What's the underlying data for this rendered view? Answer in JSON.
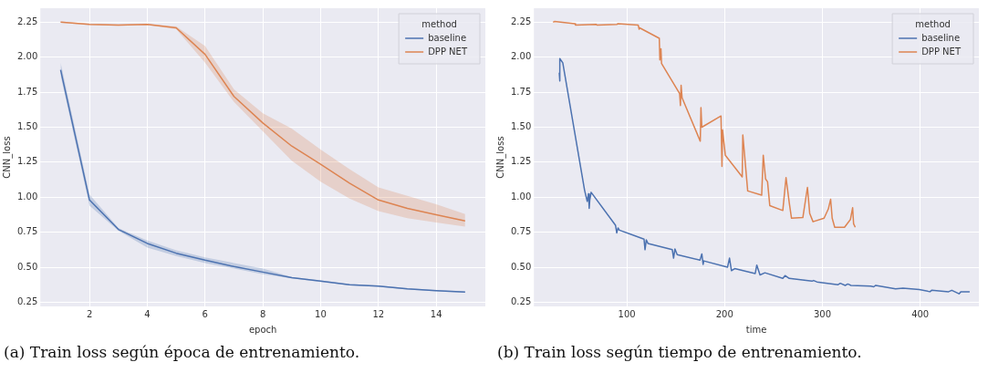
{
  "chart_data": [
    {
      "type": "line",
      "xlabel": "epoch",
      "ylabel": "CNN_loss",
      "legend_title": "method",
      "legend": "top right",
      "grid": true,
      "xlim": [
        0.3,
        15.7
      ],
      "xticks": [
        2,
        4,
        6,
        8,
        10,
        12,
        14
      ],
      "ylim": [
        0.22,
        2.35
      ],
      "yticks": [
        0.25,
        {
          "value": 0.5,
          "label": "0.50"
        },
        0.75,
        {
          "value": 1,
          "label": "1.00"
        },
        1.25,
        {
          "value": 1.5,
          "label": "1.50"
        },
        1.75,
        {
          "value": 2,
          "label": "2.00"
        },
        2.25
      ],
      "annotations": [
        "(a) Train loss según época de entrenamiento."
      ],
      "x": [
        1,
        2,
        3,
        4,
        5,
        6,
        7,
        8,
        9,
        10,
        11,
        12,
        13,
        14,
        15
      ],
      "series": [
        {
          "name": "baseline",
          "color": "#4c72b0",
          "values": [
            1.91,
            0.98,
            0.77,
            0.67,
            0.6,
            0.55,
            0.505,
            0.465,
            0.425,
            0.4,
            0.375,
            0.365,
            0.345,
            0.333,
            0.322
          ],
          "lower": [
            1.87,
            0.94,
            0.76,
            0.64,
            0.58,
            0.53,
            0.49,
            0.45,
            0.42,
            0.395,
            0.37,
            0.36,
            0.34,
            0.328,
            0.317
          ],
          "upper": [
            1.96,
            1.02,
            0.78,
            0.69,
            0.62,
            0.57,
            0.53,
            0.49,
            0.43,
            0.405,
            0.38,
            0.37,
            0.35,
            0.338,
            0.327
          ]
        },
        {
          "name": "DPP NET",
          "color": "#dd8452",
          "values": [
            2.25,
            2.235,
            2.23,
            2.235,
            2.21,
            2.02,
            1.72,
            1.53,
            1.365,
            1.235,
            1.1,
            0.98,
            0.92,
            0.875,
            0.83
          ],
          "lower": [
            2.245,
            2.23,
            2.225,
            2.23,
            2.2,
            1.96,
            1.68,
            1.47,
            1.26,
            1.11,
            0.99,
            0.9,
            0.85,
            0.82,
            0.79
          ],
          "upper": [
            2.255,
            2.24,
            2.235,
            2.24,
            2.22,
            2.08,
            1.77,
            1.6,
            1.49,
            1.34,
            1.2,
            1.07,
            1.01,
            0.95,
            0.88
          ]
        }
      ]
    },
    {
      "type": "line",
      "xlabel": "time",
      "ylabel": "CNN_loss",
      "legend_title": "method",
      "legend": "top right",
      "grid": true,
      "xlim": [
        5,
        460
      ],
      "xticks": [
        100,
        200,
        300,
        400
      ],
      "ylim": [
        0.22,
        2.35
      ],
      "yticks": [
        0.25,
        {
          "value": 0.5,
          "label": "0.50"
        },
        0.75,
        {
          "value": 1,
          "label": "1.00"
        },
        1.25,
        {
          "value": 1.5,
          "label": "1.50"
        },
        1.75,
        {
          "value": 2,
          "label": "2.00"
        },
        2.25
      ],
      "annotations": [
        "(b) Train loss según tiempo de entrenamiento."
      ],
      "series": [
        {
          "name": "baseline",
          "color": "#4c72b0",
          "x": [
            30.9,
            31.2,
            31.6,
            31.6,
            34.5,
            56.8,
            59.5,
            60.8,
            61.5,
            62.1,
            63.5,
            88.4,
            89.7,
            91,
            92.4,
            117.6,
            118.6,
            119.9,
            121.6,
            146.5,
            147.8,
            149.2,
            151.5,
            174.8,
            176.7,
            178,
            178.7,
            203,
            205,
            207,
            210.3,
            231.3,
            232.9,
            236.2,
            241.2,
            259.5,
            261.8,
            266.1,
            289.4,
            291,
            294.4,
            316,
            318.3,
            323.3,
            326,
            329.2,
            349.2,
            352.5,
            354.5,
            374.8,
            382.4,
            399,
            410,
            411.7,
            429,
            432.3,
            439.7,
            441.7,
            450.6
          ],
          "values": [
            1.89,
            1.89,
            1.83,
            1.99,
            1.96,
            1.05,
            0.97,
            1.025,
            0.92,
            0.98,
            1.035,
            0.8,
            0.745,
            0.78,
            0.765,
            0.7,
            0.625,
            0.695,
            0.67,
            0.625,
            0.565,
            0.63,
            0.59,
            0.55,
            0.595,
            0.52,
            0.545,
            0.5,
            0.565,
            0.475,
            0.49,
            0.455,
            0.515,
            0.445,
            0.46,
            0.42,
            0.44,
            0.42,
            0.4,
            0.405,
            0.395,
            0.375,
            0.385,
            0.37,
            0.38,
            0.37,
            0.365,
            0.36,
            0.37,
            0.345,
            0.35,
            0.34,
            0.325,
            0.335,
            0.325,
            0.335,
            0.31,
            0.325,
            0.325
          ]
        },
        {
          "name": "DPP NET",
          "color": "#dd8452",
          "x": [
            24.6,
            26,
            46.8,
            47.5,
            68.4,
            69.4,
            90,
            91,
            111.6,
            112.6,
            113,
            133.2,
            133.8,
            134.9,
            135.5,
            154,
            154.8,
            155.5,
            156.5,
            175.1,
            175.8,
            176.7,
            196.3,
            197.3,
            197.9,
            200.7,
            218,
            218.6,
            223.6,
            237.9,
            239.5,
            241.9,
            243.9,
            246.2,
            259.5,
            262.8,
            266.1,
            268.4,
            280,
            284.7,
            287,
            290.4,
            301.7,
            306,
            308.4,
            310,
            312.6,
            322.6,
            328.6,
            330.9,
            331.9,
            333.6
          ],
          "values": [
            2.25,
            2.255,
            2.24,
            2.23,
            2.235,
            2.23,
            2.235,
            2.24,
            2.23,
            2.2,
            2.21,
            2.135,
            1.98,
            2.06,
            1.955,
            1.74,
            1.655,
            1.8,
            1.71,
            1.4,
            1.64,
            1.5,
            1.58,
            1.22,
            1.48,
            1.3,
            1.145,
            1.445,
            1.045,
            1.015,
            1.3,
            1.13,
            1.11,
            0.94,
            0.905,
            1.14,
            0.96,
            0.85,
            0.855,
            1.07,
            0.885,
            0.825,
            0.85,
            0.915,
            0.985,
            0.85,
            0.785,
            0.785,
            0.84,
            0.925,
            0.81,
            0.785
          ]
        }
      ]
    }
  ]
}
